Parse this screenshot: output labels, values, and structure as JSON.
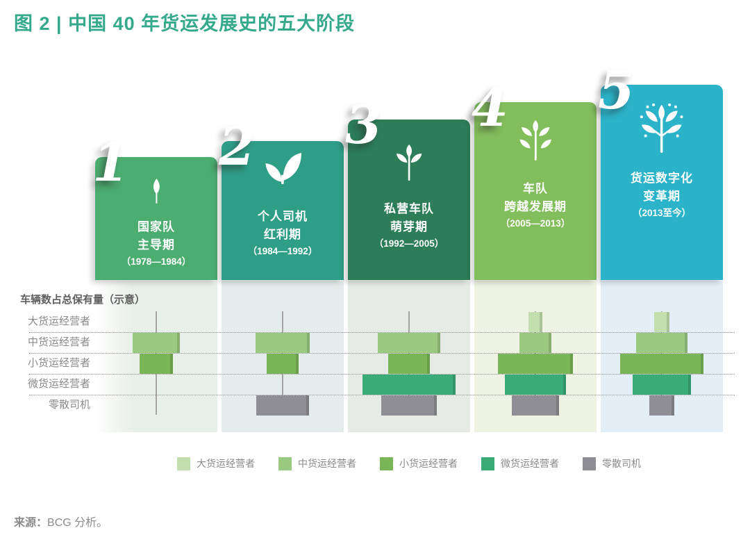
{
  "title": "图 2 | 中国 40 年货运发展史的五大阶段",
  "title_color": "#35a98b",
  "stages": [
    {
      "num": "1",
      "icon": "seed-leaf-icon",
      "line1": "国家队",
      "line2": "主导期",
      "years": "（1978—1984）",
      "color": "#4cad70"
    },
    {
      "num": "2",
      "icon": "sprout-icon",
      "line1": "个人司机",
      "line2": "红利期",
      "years": "（1984—1992）",
      "color": "#2f9e87"
    },
    {
      "num": "3",
      "icon": "seedling-icon",
      "line1": "私营车队",
      "line2": "萌芽期",
      "years": "（1992—2005）",
      "color": "#2c7d58"
    },
    {
      "num": "4",
      "icon": "bush-icon",
      "line1": "车队",
      "line2": "跨越发展期",
      "years": "（2005—2013）",
      "color": "#83be5c"
    },
    {
      "num": "5",
      "icon": "blossom-tree-icon",
      "line1": "货运数字化",
      "line2": "变革期",
      "years": "（2013至今）",
      "color": "#2bb3c9"
    }
  ],
  "chart": {
    "section_title": "车辆数占总保有量（示意）",
    "row_labels": [
      "大货运经营者",
      "中货运经营者",
      "小货运经营者",
      "微货运经营者",
      "零散司机"
    ]
  },
  "chart_data": {
    "type": "bar",
    "title": "车辆数占总保有量（示意）",
    "orientation": "horizontal-centered",
    "categories": [
      "大货运经营者",
      "中货运经营者",
      "小货运经营者",
      "微货运经营者",
      "零散司机"
    ],
    "series": [
      {
        "name": "国家队主导期（1978—1984）",
        "values": [
          0,
          39,
          27,
          0,
          0
        ]
      },
      {
        "name": "个人司机红利期（1984—1992）",
        "values": [
          0,
          44,
          26,
          0,
          43
        ]
      },
      {
        "name": "私营车队萌芽期（1992—2005）",
        "values": [
          0,
          51,
          34,
          76,
          46
        ]
      },
      {
        "name": "车队跨越发展期（2005—2013）",
        "values": [
          11,
          26,
          61,
          50,
          39
        ]
      },
      {
        "name": "货运数字化变革期（2013至今）",
        "values": [
          13,
          42,
          68,
          48,
          20
        ]
      }
    ],
    "unit": "bar width as % of stage column width (illustrative, no numeric axis)",
    "grid": "dotted horizontal separators between categories, thin vertical baseline per stage",
    "legend_position": "bottom"
  },
  "legend": {
    "items": [
      {
        "label": "大货运经营者",
        "color": "#c3dfae"
      },
      {
        "label": "中货运经营者",
        "color": "#9aca7f"
      },
      {
        "label": "小货运经营者",
        "color": "#7ab657"
      },
      {
        "label": "微货运经营者",
        "color": "#3aac78"
      },
      {
        "label": "零散司机",
        "color": "#8e8e94"
      }
    ]
  },
  "source": {
    "prefix": "来源：",
    "text": "BCG 分析。"
  }
}
